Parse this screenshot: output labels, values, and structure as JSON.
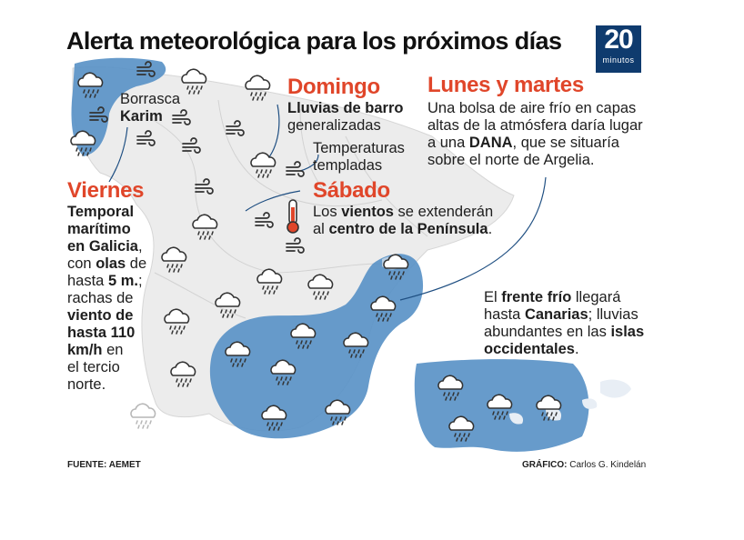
{
  "title": "Alerta meteorológica para los próximos días",
  "logo": {
    "number": "20",
    "word": "minutos"
  },
  "borrasca": {
    "line1": "Borrasca",
    "line2": "Karim"
  },
  "domingo": {
    "heading": "Domingo",
    "bold": "Lluvias de barro",
    "text": "generalizadas",
    "temp1": "Temperaturas",
    "temp2": "templadas"
  },
  "lunes": {
    "heading": "Lunes y martes",
    "l1": "Una bolsa de aire frío en capas",
    "l2": "altas de la atmósfera daría lugar",
    "l3a": "a una ",
    "l3b": "DANA",
    "l3c": ", que se situaría",
    "l4": "sobre el norte de Argelia."
  },
  "viernes": {
    "heading": "Viernes",
    "l1": "Temporal",
    "l2": "marítimo",
    "l3": "en Galicia",
    "l3c": ",",
    "l4a": "con ",
    "l4b": "olas",
    "l4c": " de",
    "l5a": "hasta ",
    "l5b": "5 m.",
    "l5c": ";",
    "l6": "rachas de",
    "l7": "viento de",
    "l8": "hasta 110",
    "l9a": "km/h",
    "l9b": " en",
    "l10": "el tercio",
    "l11": "norte."
  },
  "sabado": {
    "heading": "Sábado",
    "l1a": "Los ",
    "l1b": "vientos",
    "l1c": " se extenderán",
    "l2a": "al ",
    "l2b": "centro de la Península",
    "l2c": "."
  },
  "canarias": {
    "l1a": "El ",
    "l1b": "frente frío",
    "l1c": " llegará",
    "l2a": "hasta ",
    "l2b": "Canarias",
    "l2c": "; lluvias",
    "l3a": "abundantes en las ",
    "l3b": "islas",
    "l4": "occidentales",
    "l4c": "."
  },
  "footer": {
    "source": "FUENTE: AEMET",
    "graphic_label": "GRÁFICO:",
    "graphic_author": "Carlos G. Kindelán"
  },
  "colors": {
    "accent": "#e0462a",
    "alert_area": "#5a92c7",
    "land": "#ececec",
    "logo": "#0f3b6e"
  },
  "icons": [
    "rain-cloud-icon",
    "wind-icon",
    "thermometer-icon"
  ]
}
